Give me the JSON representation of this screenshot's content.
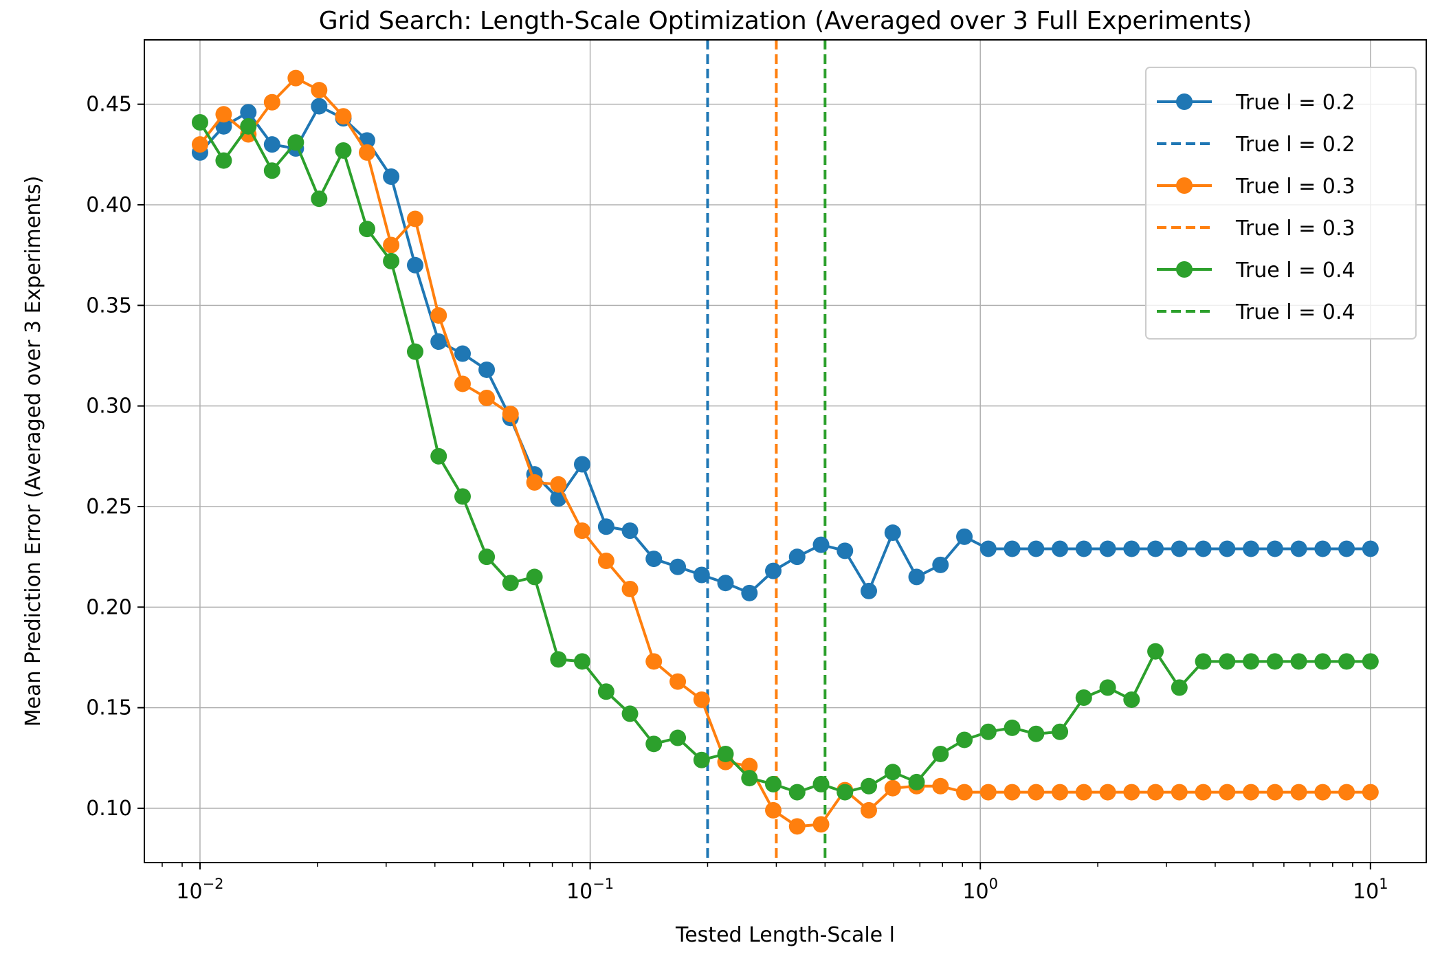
{
  "chart_data": {
    "type": "line",
    "title": "Grid Search: Length-Scale Optimization (Averaged over 3 Full Experiments)",
    "xlabel": "Tested Length-Scale l",
    "ylabel": "Mean Prediction Error (Averaged over 3 Experiments)",
    "x_scale": "log",
    "xlim": [
      0.0072,
      13.9
    ],
    "ylim": [
      0.073,
      0.482
    ],
    "grid": true,
    "legend_position": "top-right",
    "x_ticks": [
      {
        "value": 0.01,
        "base": "10",
        "exp": "−2"
      },
      {
        "value": 0.1,
        "base": "10",
        "exp": "−1"
      },
      {
        "value": 1,
        "base": "10",
        "exp": "0"
      },
      {
        "value": 10,
        "base": "10",
        "exp": "1"
      }
    ],
    "y_ticks": [
      {
        "value": 0.1,
        "label": "0.10"
      },
      {
        "value": 0.15,
        "label": "0.15"
      },
      {
        "value": 0.2,
        "label": "0.20"
      },
      {
        "value": 0.25,
        "label": "0.25"
      },
      {
        "value": 0.3,
        "label": "0.30"
      },
      {
        "value": 0.35,
        "label": "0.35"
      },
      {
        "value": 0.4,
        "label": "0.40"
      },
      {
        "value": 0.45,
        "label": "0.45"
      }
    ],
    "x": [
      0.01,
      0.0115,
      0.0133,
      0.0153,
      0.0176,
      0.0202,
      0.0233,
      0.0268,
      0.0309,
      0.0356,
      0.0409,
      0.0471,
      0.0543,
      0.0625,
      0.072,
      0.0829,
      0.0954,
      0.1099,
      0.1265,
      0.1456,
      0.1677,
      0.1931,
      0.2223,
      0.256,
      0.2947,
      0.3393,
      0.3907,
      0.4498,
      0.5179,
      0.5964,
      0.6866,
      0.7906,
      0.9103,
      1.0481,
      1.2068,
      1.3895,
      1.5999,
      1.8421,
      2.121,
      2.4421,
      2.8118,
      3.2375,
      3.7276,
      4.2919,
      4.9417,
      5.6899,
      6.5513,
      7.5431,
      8.6851,
      10.0
    ],
    "series": [
      {
        "name": "True l = 0.2",
        "color": "#1f77b4",
        "values": [
          0.426,
          0.439,
          0.446,
          0.43,
          0.428,
          0.449,
          0.443,
          0.432,
          0.414,
          0.37,
          0.332,
          0.326,
          0.318,
          0.294,
          0.266,
          0.254,
          0.271,
          0.24,
          0.238,
          0.224,
          0.22,
          0.216,
          0.212,
          0.207,
          0.218,
          0.225,
          0.231,
          0.228,
          0.208,
          0.237,
          0.215,
          0.221,
          0.235,
          0.229,
          0.229,
          0.229,
          0.229,
          0.229,
          0.229,
          0.229,
          0.229,
          0.229,
          0.229,
          0.229,
          0.229,
          0.229,
          0.229,
          0.229,
          0.229,
          0.229
        ]
      },
      {
        "name": "True l = 0.3",
        "color": "#ff7f0e",
        "values": [
          0.43,
          0.445,
          0.435,
          0.451,
          0.463,
          0.457,
          0.444,
          0.426,
          0.38,
          0.393,
          0.345,
          0.311,
          0.304,
          0.296,
          0.262,
          0.261,
          0.238,
          0.223,
          0.209,
          0.173,
          0.163,
          0.154,
          0.123,
          0.121,
          0.099,
          0.091,
          0.092,
          0.109,
          0.099,
          0.11,
          0.111,
          0.111,
          0.108,
          0.108,
          0.108,
          0.108,
          0.108,
          0.108,
          0.108,
          0.108,
          0.108,
          0.108,
          0.108,
          0.108,
          0.108,
          0.108,
          0.108,
          0.108,
          0.108,
          0.108
        ]
      },
      {
        "name": "True l = 0.4",
        "color": "#2ca02c",
        "values": [
          0.441,
          0.422,
          0.439,
          0.417,
          0.431,
          0.403,
          0.427,
          0.388,
          0.372,
          0.327,
          0.275,
          0.255,
          0.225,
          0.212,
          0.215,
          0.174,
          0.173,
          0.158,
          0.147,
          0.132,
          0.135,
          0.124,
          0.127,
          0.115,
          0.112,
          0.108,
          0.112,
          0.108,
          0.111,
          0.118,
          0.113,
          0.127,
          0.134,
          0.138,
          0.14,
          0.137,
          0.138,
          0.155,
          0.16,
          0.154,
          0.178,
          0.16,
          0.173,
          0.173,
          0.173,
          0.173,
          0.173,
          0.173,
          0.173,
          0.173
        ]
      }
    ],
    "vlines": [
      {
        "name": "True l = 0.2",
        "x": 0.2,
        "color": "#1f77b4"
      },
      {
        "name": "True l = 0.3",
        "x": 0.3,
        "color": "#ff7f0e"
      },
      {
        "name": "True l = 0.4",
        "x": 0.4,
        "color": "#2ca02c"
      }
    ],
    "legend": [
      {
        "label": "True l = 0.2",
        "style": "marker-line",
        "color": "#1f77b4"
      },
      {
        "label": "True l = 0.2",
        "style": "dashed",
        "color": "#1f77b4"
      },
      {
        "label": "True l = 0.3",
        "style": "marker-line",
        "color": "#ff7f0e"
      },
      {
        "label": "True l = 0.3",
        "style": "dashed",
        "color": "#ff7f0e"
      },
      {
        "label": "True l = 0.4",
        "style": "marker-line",
        "color": "#2ca02c"
      },
      {
        "label": "True l = 0.4",
        "style": "dashed",
        "color": "#2ca02c"
      }
    ]
  }
}
